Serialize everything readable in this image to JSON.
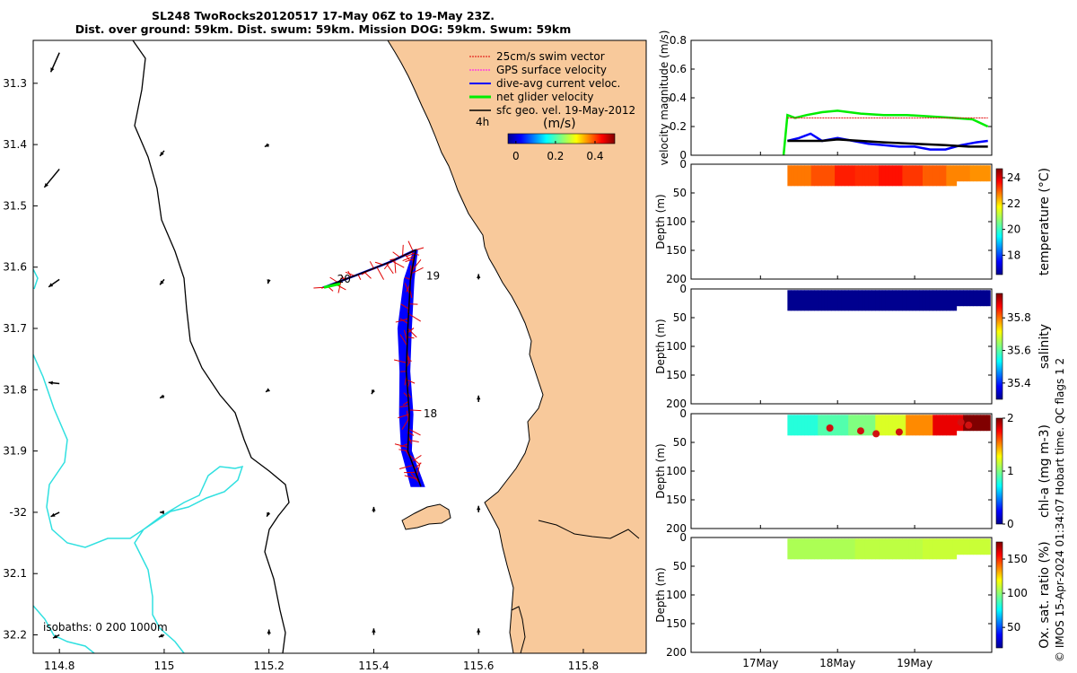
{
  "chart_data": [
    {
      "type": "map",
      "title": "SL248 TwoRocks20120517 17-May 06Z to 19-May 23Z.",
      "subtitle": "Dist. over ground: 59km. Dist. swum: 59km. Mission DOG: 59km. Swum: 59km",
      "xlim": [
        114.75,
        115.92
      ],
      "ylim": [
        -32.23,
        -31.23
      ],
      "x_ticks": [
        114.8,
        115,
        115.2,
        115.4,
        115.6,
        115.8
      ],
      "x_tick_labels": [
        "114.8",
        "115",
        "115.2",
        "115.4",
        "115.6",
        "115.8"
      ],
      "y_ticks": [
        -31.3,
        -31.4,
        -31.5,
        -31.6,
        -31.7,
        -31.8,
        -31.9,
        -32,
        -32.1,
        -32.2
      ],
      "y_tick_labels": [
        "31.3",
        "31.4",
        "31.5",
        "31.6",
        "31.7",
        "31.8",
        "31.9",
        "-32",
        "32.1",
        "32.2"
      ],
      "legend": [
        "25cm/s swim vector",
        "GPS surface velocity",
        "dive-avg current veloc.",
        "net glider velocity",
        "sfc geo. vel. 19-May-2012"
      ],
      "legend_colors": [
        "#e00000",
        "#ff00ff",
        "#0000ff",
        "#00ee00",
        "#000000"
      ],
      "legend_extra": "4h",
      "colorbar": {
        "label": "(m/s)",
        "ticks": [
          0,
          0.2,
          0.4
        ],
        "tick_labels": [
          "0",
          "0.2",
          "0.4"
        ],
        "range": [
          -0.04,
          0.5
        ]
      },
      "isobath_note": "isobaths: 0   200  1000m",
      "day_labels": [
        {
          "text": "20",
          "lon": 115.33,
          "lat": -31.625
        },
        {
          "text": "19",
          "lon": 115.5,
          "lat": -31.62
        },
        {
          "text": "18",
          "lon": 115.495,
          "lat": -31.845
        }
      ],
      "track": [
        [
          115.305,
          -31.633
        ],
        [
          115.37,
          -31.612
        ],
        [
          115.43,
          -31.592
        ],
        [
          115.48,
          -31.572
        ],
        [
          115.47,
          -31.62
        ],
        [
          115.465,
          -31.7
        ],
        [
          115.462,
          -31.77
        ],
        [
          115.468,
          -31.84
        ],
        [
          115.465,
          -31.9
        ],
        [
          115.49,
          -31.958
        ]
      ],
      "geo_vectors": [
        {
          "lon": 114.8,
          "lat": -31.25,
          "u": 0.08,
          "v": 0.18
        },
        {
          "lon": 114.8,
          "lat": -31.44,
          "u": 0.14,
          "v": 0.17
        },
        {
          "lon": 115.0,
          "lat": -31.41,
          "u": 0.04,
          "v": 0.05
        },
        {
          "lon": 115.2,
          "lat": -31.4,
          "u": 0.04,
          "v": 0.02
        },
        {
          "lon": 114.8,
          "lat": -31.62,
          "u": 0.1,
          "v": 0.07
        },
        {
          "lon": 115.0,
          "lat": -31.62,
          "u": 0.04,
          "v": 0.05
        },
        {
          "lon": 115.2,
          "lat": -31.62,
          "u": 0.01,
          "v": 0.04
        },
        {
          "lon": 115.6,
          "lat": -31.62,
          "u": 0.0,
          "v": -0.05
        },
        {
          "lon": 114.8,
          "lat": -31.79,
          "u": 0.1,
          "v": -0.01
        },
        {
          "lon": 115.0,
          "lat": -31.81,
          "u": 0.04,
          "v": 0.02
        },
        {
          "lon": 115.2,
          "lat": -31.8,
          "u": 0.03,
          "v": 0.02
        },
        {
          "lon": 115.4,
          "lat": -31.8,
          "u": 0.02,
          "v": 0.04
        },
        {
          "lon": 115.6,
          "lat": -31.82,
          "u": 0.0,
          "v": -0.06
        },
        {
          "lon": 114.8,
          "lat": -32.0,
          "u": 0.08,
          "v": 0.04
        },
        {
          "lon": 115.0,
          "lat": -32.0,
          "u": 0.04,
          "v": 0.0
        },
        {
          "lon": 115.2,
          "lat": -32.0,
          "u": 0.02,
          "v": 0.04
        },
        {
          "lon": 115.4,
          "lat": -32.0,
          "u": 0.0,
          "v": -0.05
        },
        {
          "lon": 115.6,
          "lat": -32.0,
          "u": 0.0,
          "v": -0.06
        },
        {
          "lon": 114.8,
          "lat": -32.2,
          "u": 0.06,
          "v": 0.03
        },
        {
          "lon": 115.0,
          "lat": -32.2,
          "u": 0.05,
          "v": 0.02
        },
        {
          "lon": 115.2,
          "lat": -32.2,
          "u": 0.0,
          "v": -0.05
        },
        {
          "lon": 115.4,
          "lat": -32.2,
          "u": 0.0,
          "v": -0.06
        },
        {
          "lon": 115.6,
          "lat": -32.2,
          "u": 0.0,
          "v": -0.06
        }
      ]
    },
    {
      "type": "line",
      "ylabel": "velocity magnitude (m/s)",
      "ylim": [
        0,
        0.8
      ],
      "y_ticks": [
        0,
        0.2,
        0.4,
        0.6,
        0.8
      ],
      "y_tick_labels": [
        "0",
        "0.2",
        "0.4",
        "0.6",
        "0.8"
      ],
      "xlim": [
        16.1,
        20.0
      ],
      "series": [
        {
          "name": "net glider velocity",
          "color": "#00ee00",
          "x": [
            17.3,
            17.35,
            17.45,
            17.6,
            17.8,
            18.0,
            18.3,
            18.6,
            18.9,
            19.2,
            19.5,
            19.75,
            19.95
          ],
          "y": [
            0.0,
            0.28,
            0.26,
            0.28,
            0.3,
            0.31,
            0.29,
            0.28,
            0.28,
            0.27,
            0.26,
            0.25,
            0.2
          ]
        },
        {
          "name": "25cm/s swim vector",
          "color": "#e00000",
          "x": [
            17.35,
            18.0,
            18.5,
            19.0,
            19.5,
            19.95
          ],
          "y": [
            0.26,
            0.26,
            0.26,
            0.26,
            0.26,
            0.26
          ]
        },
        {
          "name": "dive-avg current veloc.",
          "color": "#0000ff",
          "x": [
            17.35,
            17.5,
            17.65,
            17.8,
            18.0,
            18.2,
            18.4,
            18.6,
            18.8,
            19.0,
            19.2,
            19.4,
            19.6,
            19.8,
            19.95
          ],
          "y": [
            0.1,
            0.12,
            0.15,
            0.1,
            0.12,
            0.1,
            0.08,
            0.07,
            0.06,
            0.06,
            0.04,
            0.04,
            0.07,
            0.09,
            0.1
          ]
        },
        {
          "name": "sfc geo. vel.",
          "color": "#000000",
          "x": [
            17.35,
            17.8,
            18.0,
            18.3,
            18.6,
            19.0,
            19.4,
            19.7,
            19.95
          ],
          "y": [
            0.1,
            0.1,
            0.11,
            0.1,
            0.09,
            0.08,
            0.07,
            0.06,
            0.06
          ]
        }
      ]
    },
    {
      "type": "scatter",
      "ylabel": "Depth (m)",
      "clabel": "temperature (°C)",
      "ylim": [
        0,
        200
      ],
      "y_ticks": [
        0,
        50,
        100,
        150,
        200
      ],
      "y_tick_labels": [
        "0",
        "50",
        "100",
        "150",
        "200"
      ],
      "colorbar_ticks": [
        18,
        20,
        22,
        24
      ],
      "colorbar_tick_labels": [
        "18",
        "20",
        "22",
        "24"
      ],
      "crange": [
        16.5,
        24.7
      ],
      "values": [
        22.8,
        23.1,
        23.5,
        23.4,
        23.6,
        23.3,
        23.0,
        22.7,
        22.6
      ]
    },
    {
      "type": "scatter",
      "ylabel": "Depth (m)",
      "clabel": "salinity",
      "ylim": [
        0,
        200
      ],
      "y_ticks": [
        0,
        50,
        100,
        150,
        200
      ],
      "y_tick_labels": [
        "0",
        "50",
        "100",
        "150",
        "200"
      ],
      "colorbar_ticks": [
        35.4,
        35.6,
        35.8
      ],
      "colorbar_tick_labels": [
        "35.4",
        "35.6",
        "35.8"
      ],
      "crange": [
        35.3,
        35.95
      ],
      "values": [
        35.3,
        35.3,
        35.3,
        35.3,
        35.3
      ]
    },
    {
      "type": "scatter",
      "ylabel": "Depth (m)",
      "clabel": "chl-a (mg m-3)",
      "ylim": [
        0,
        200
      ],
      "y_ticks": [
        0,
        50,
        100,
        150,
        200
      ],
      "y_tick_labels": [
        "0",
        "50",
        "100",
        "150",
        "200"
      ],
      "colorbar_ticks": [
        0,
        1,
        2
      ],
      "colorbar_tick_labels": [
        "0",
        "1",
        "2"
      ],
      "crange": [
        0,
        2
      ],
      "values": [
        0.8,
        0.9,
        1.0,
        1.2,
        1.5,
        1.8,
        2.0
      ]
    },
    {
      "type": "scatter",
      "ylabel": "Depth (m)",
      "clabel": "Ox. sat. ratio (%)",
      "ylim": [
        0,
        200
      ],
      "y_ticks": [
        0,
        50,
        100,
        150,
        200
      ],
      "y_tick_labels": [
        "0",
        "50",
        "100",
        "150",
        "200"
      ],
      "colorbar_ticks": [
        50,
        100,
        150
      ],
      "colorbar_tick_labels": [
        "50",
        "100",
        "150"
      ],
      "crange": [
        20,
        175
      ],
      "values": [
        105,
        108,
        110
      ]
    }
  ],
  "time_axis": {
    "ticks": [
      17,
      18,
      19
    ],
    "tick_labels": [
      "17May",
      "18May",
      "19May"
    ]
  },
  "footer": {
    "credit": "© IMOS 15-Apr-2024 01:34:07 Hobart time. QC flags 1  2"
  },
  "colors": {
    "land": "#f8c99b",
    "isobath_200": "#000000",
    "isobath_1000": "#30e0e0"
  }
}
